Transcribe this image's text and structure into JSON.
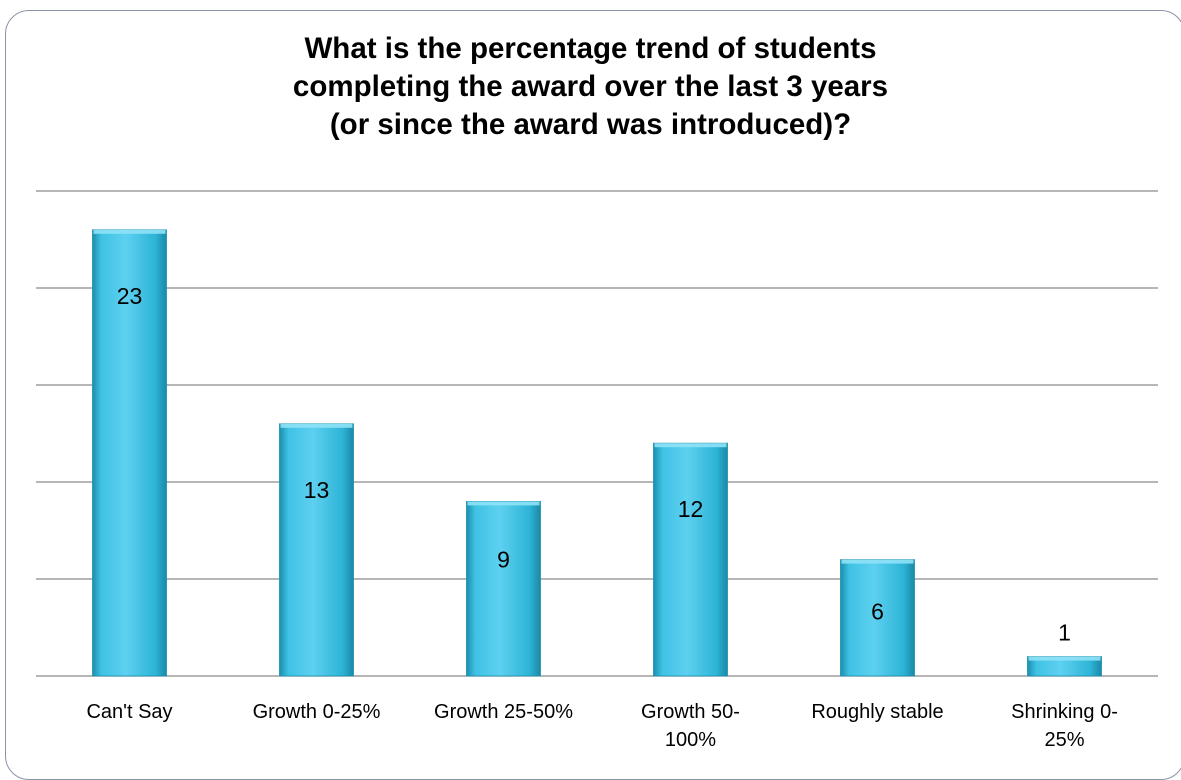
{
  "chart_data": {
    "type": "bar",
    "title": "What is the percentage trend of students completing the award over the last 3 years (or since the award was introduced)?",
    "title_lines": [
      "What is the percentage trend of students",
      "completing the award over the last 3 years",
      "(or since the award was introduced)?"
    ],
    "categories": [
      "Can't Say",
      "Growth 0-25%",
      "Growth 25-50%",
      "Growth 50-100%",
      "Roughly stable",
      "Shrinking 0-25%"
    ],
    "category_label_lines": [
      [
        "Can't Say"
      ],
      [
        "Growth 0-25%"
      ],
      [
        "Growth 25-50%"
      ],
      [
        "Growth 50-",
        "100%"
      ],
      [
        "Roughly stable"
      ],
      [
        "Shrinking 0-",
        "25%"
      ]
    ],
    "values": [
      23,
      13,
      9,
      12,
      6,
      1
    ],
    "ylim": [
      0,
      25
    ],
    "grid": true,
    "legend": "none",
    "colors": {
      "bar_light": "#5ed0f0",
      "bar_mid": "#2db4d6",
      "bar_dark": "#1b8fad",
      "bar_top": "#8fe2f7",
      "gridline": "#8a8a8a",
      "border": "#8a94a6"
    }
  }
}
